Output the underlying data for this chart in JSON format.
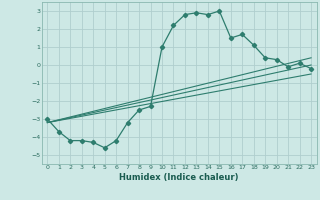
{
  "xlabel": "Humidex (Indice chaleur)",
  "bg_color": "#cde8e5",
  "grid_color": "#b0cece",
  "line_color": "#2e7d6e",
  "xlim": [
    -0.5,
    23.5
  ],
  "ylim": [
    -5.5,
    3.5
  ],
  "xticks": [
    0,
    1,
    2,
    3,
    4,
    5,
    6,
    7,
    8,
    9,
    10,
    11,
    12,
    13,
    14,
    15,
    16,
    17,
    18,
    19,
    20,
    21,
    22,
    23
  ],
  "yticks": [
    -5,
    -4,
    -3,
    -2,
    -1,
    0,
    1,
    2,
    3
  ],
  "curve1_x": [
    0,
    1,
    2,
    3,
    4,
    5,
    6,
    7,
    8,
    9,
    10,
    11,
    12,
    13,
    14,
    15,
    16,
    17,
    18,
    19,
    20,
    21,
    22,
    23
  ],
  "curve1_y": [
    -3.0,
    -3.7,
    -4.2,
    -4.2,
    -4.3,
    -4.6,
    -4.2,
    -3.2,
    -2.5,
    -2.3,
    1.0,
    2.2,
    2.8,
    2.9,
    2.8,
    3.0,
    1.5,
    1.7,
    1.1,
    0.4,
    0.3,
    -0.1,
    0.1,
    -0.2
  ],
  "line1_x": [
    0,
    23
  ],
  "line1_y": [
    -3.2,
    -0.5
  ],
  "line2_x": [
    0,
    23
  ],
  "line2_y": [
    -3.2,
    0.0
  ],
  "line3_x": [
    0,
    23
  ],
  "line3_y": [
    -3.2,
    0.4
  ]
}
